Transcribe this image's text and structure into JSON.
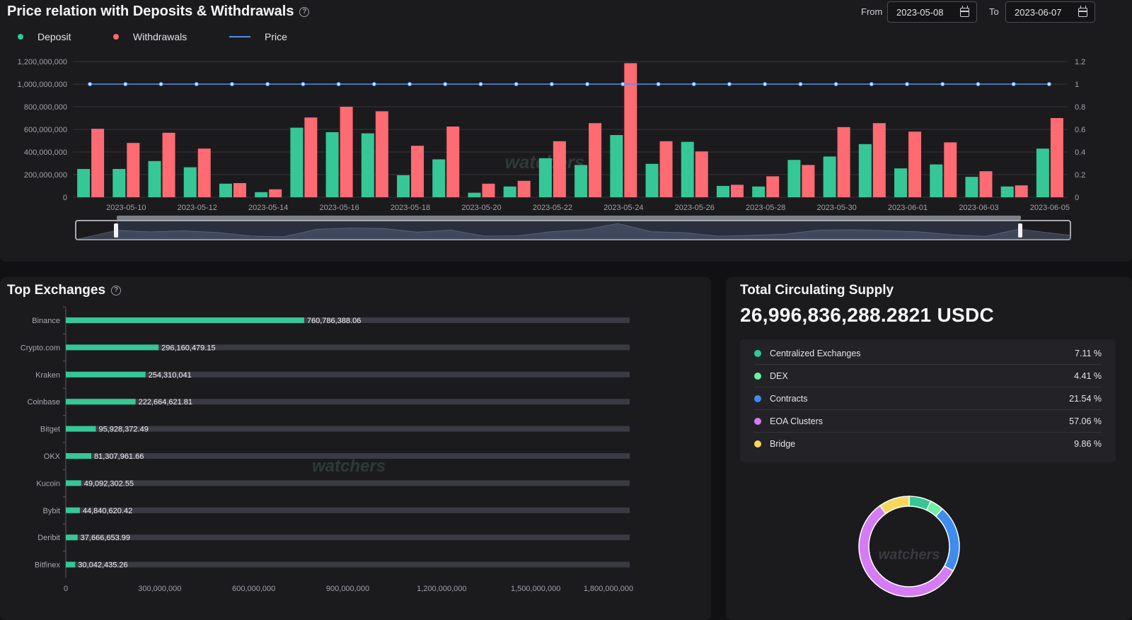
{
  "top": {
    "title": "Price relation with Deposits & Withdrawals",
    "from_label": "From",
    "from_value": "2023-05-08",
    "to_label": "To",
    "to_value": "2023-06-07",
    "legend": [
      {
        "label": "Deposit",
        "color": "#35c795",
        "kind": "dot"
      },
      {
        "label": "Withdrawals",
        "color": "#ff6b72",
        "kind": "dot"
      },
      {
        "label": "Price",
        "color": "#4f8ff0",
        "kind": "line"
      }
    ],
    "watermark": "watchers"
  },
  "exchanges": {
    "title": "Top Exchanges",
    "watermark": "watchers"
  },
  "supply": {
    "title": "Total Circulating Supply",
    "value": "26,996,836,288.2821 USDC",
    "items": [
      {
        "name": "Centralized Exchanges",
        "pct": "7.11 %",
        "value": 7.11,
        "color": "#35c795"
      },
      {
        "name": "DEX",
        "pct": "4.41 %",
        "value": 4.41,
        "color": "#6ef0a2"
      },
      {
        "name": "Contracts",
        "pct": "21.54 %",
        "value": 21.54,
        "color": "#3f8cf0"
      },
      {
        "name": "EOA Clusters",
        "pct": "57.06 %",
        "value": 57.06,
        "color": "#d57cf5"
      },
      {
        "name": "Bridge",
        "pct": "9.86 %",
        "value": 9.86,
        "color": "#f7d75c"
      }
    ],
    "watermark": "watchers"
  },
  "chart_data": [
    {
      "type": "bar",
      "title": "Price relation with Deposits & Withdrawals",
      "dates": [
        "2023-05-09",
        "2023-05-10",
        "2023-05-11",
        "2023-05-12",
        "2023-05-13",
        "2023-05-14",
        "2023-05-15",
        "2023-05-16",
        "2023-05-17",
        "2023-05-18",
        "2023-05-19",
        "2023-05-20",
        "2023-05-21",
        "2023-05-22",
        "2023-05-23",
        "2023-05-24",
        "2023-05-25",
        "2023-05-26",
        "2023-05-27",
        "2023-05-28",
        "2023-05-29",
        "2023-05-30",
        "2023-05-31",
        "2023-06-01",
        "2023-06-02",
        "2023-06-03",
        "2023-06-04",
        "2023-06-05"
      ],
      "x_tick_labels": [
        "2023-05-10",
        "2023-05-12",
        "2023-05-14",
        "2023-05-16",
        "2023-05-18",
        "2023-05-20",
        "2023-05-22",
        "2023-05-24",
        "2023-05-26",
        "2023-05-28",
        "2023-05-30",
        "2023-06-01",
        "2023-06-03",
        "2023-06-05"
      ],
      "series": [
        {
          "name": "Deposit",
          "color": "#35c795",
          "values": [
            250000000,
            250000000,
            320000000,
            265000000,
            120000000,
            45000000,
            615000000,
            575000000,
            565000000,
            195000000,
            335000000,
            40000000,
            95000000,
            345000000,
            285000000,
            550000000,
            295000000,
            490000000,
            100000000,
            95000000,
            330000000,
            360000000,
            470000000,
            255000000,
            290000000,
            180000000,
            95000000,
            430000000
          ]
        },
        {
          "name": "Withdrawals",
          "color": "#ff6b72",
          "values": [
            605000000,
            480000000,
            570000000,
            430000000,
            125000000,
            70000000,
            705000000,
            800000000,
            760000000,
            455000000,
            625000000,
            120000000,
            145000000,
            495000000,
            655000000,
            1185000000,
            495000000,
            405000000,
            110000000,
            185000000,
            285000000,
            620000000,
            655000000,
            580000000,
            485000000,
            230000000,
            105000000,
            700000000
          ]
        },
        {
          "name": "Price",
          "color": "#4f8ff0",
          "axis": "right",
          "values": [
            1,
            1,
            1,
            1,
            1,
            1,
            1,
            1,
            1,
            1,
            1,
            1,
            1,
            1,
            1,
            1,
            1,
            1,
            1,
            1,
            1,
            1,
            1,
            1,
            1,
            1,
            1,
            1
          ]
        }
      ],
      "y_left_ticks": [
        "0",
        "200,000,000",
        "400,000,000",
        "600,000,000",
        "800,000,000",
        "1,000,000,000",
        "1,200,000,000"
      ],
      "y_left_lim": [
        0,
        1200000000
      ],
      "y_right_ticks": [
        "0",
        "0.2",
        "0.4",
        "0.6",
        "0.8",
        "1",
        "1.2"
      ],
      "y_right_lim": [
        0,
        1.2
      ]
    },
    {
      "type": "bar",
      "orientation": "horizontal",
      "title": "Top Exchanges",
      "categories": [
        "Binance",
        "Crypto.com",
        "Kraken",
        "Coinbase",
        "Bitget",
        "OKX",
        "Kucoin",
        "Bybit",
        "Deribit",
        "Bitfinex"
      ],
      "values": [
        760786388.06,
        296160479.15,
        254310041,
        222664621.81,
        95928372.49,
        81307961.66,
        49092302.55,
        44840620.42,
        37666653.99,
        30042435.26
      ],
      "value_labels": [
        "760,786,388.06",
        "296,160,479.15",
        "254,310,041",
        "222,664,621.81",
        "95,928,372.49",
        "81,307,961.66",
        "49,092,302.55",
        "44,840,620.42",
        "37,666,653.99",
        "30,042,435.26"
      ],
      "x_ticks": [
        "0",
        "300,000,000",
        "600,000,000",
        "900,000,000",
        "1,200,000,000",
        "1,500,000,000",
        "1,800,000,000"
      ],
      "xlim": [
        0,
        1800000000
      ],
      "color": "#35c795"
    },
    {
      "type": "pie",
      "donut": true,
      "labels": [
        "Centralized Exchanges",
        "DEX",
        "Contracts",
        "EOA Clusters",
        "Bridge"
      ],
      "values": [
        7.11,
        4.41,
        21.54,
        57.06,
        9.86
      ]
    }
  ]
}
